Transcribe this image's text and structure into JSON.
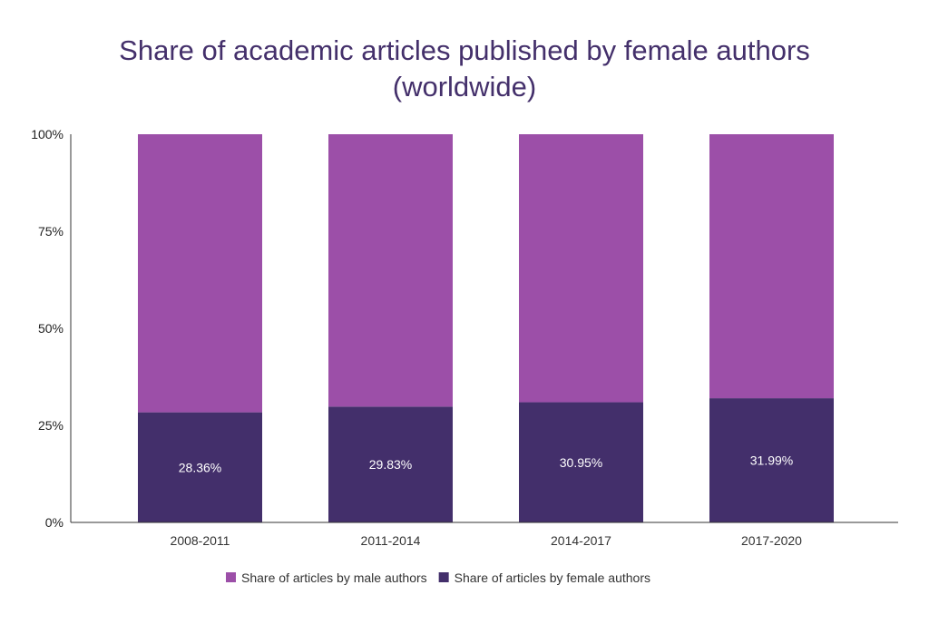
{
  "chart_data": {
    "type": "bar",
    "stacked": true,
    "title": "Share of academic articles published by female authors (worldwide)",
    "title_lines": [
      "Share of academic articles published by female authors",
      "(worldwide)"
    ],
    "categories": [
      "2008-2011",
      "2011-2014",
      "2014-2017",
      "2017-2020"
    ],
    "series": [
      {
        "name": "Share of articles by female authors",
        "values": [
          28.36,
          29.83,
          30.95,
          31.99
        ],
        "color": "#432f6b",
        "labels": [
          "28.36%",
          "29.83%",
          "30.95%",
          "31.99%"
        ]
      },
      {
        "name": "Share of articles by male authors",
        "values": [
          71.64,
          70.17,
          69.05,
          68.01
        ],
        "color": "#9c4fa8"
      }
    ],
    "legend_order": [
      1,
      0
    ],
    "legend_position": "bottom",
    "yticks": [
      "0%",
      "25%",
      "50%",
      "75%",
      "100%"
    ],
    "ylim": [
      0,
      100
    ],
    "xlabel": "",
    "ylabel": "",
    "grid": false,
    "title_color": "#44306b"
  }
}
